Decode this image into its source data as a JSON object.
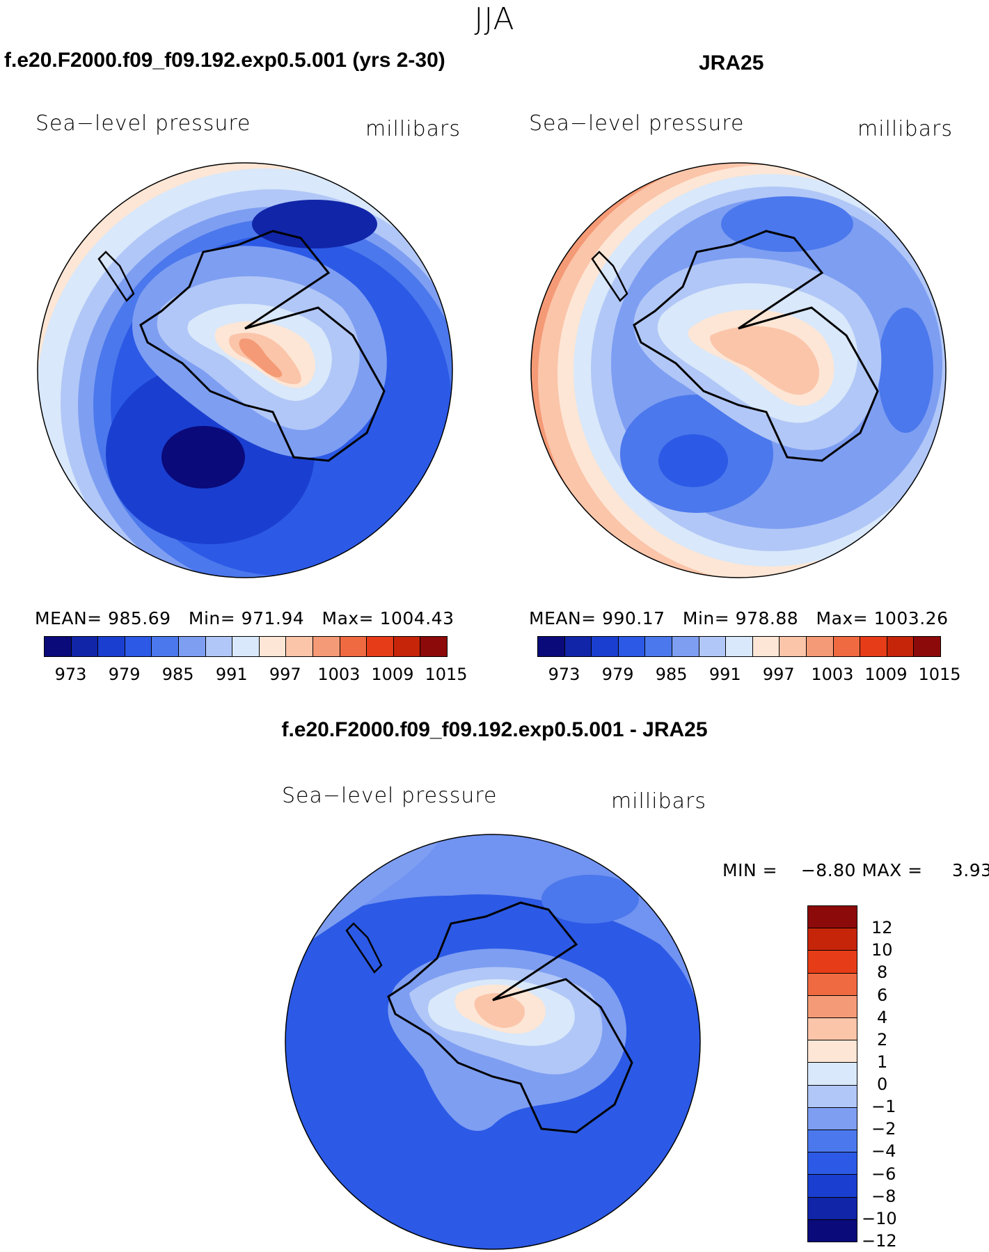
{
  "page_title": "JJA",
  "panels": [
    {
      "title": "f.e20.F2000.f09_f09.192.exp0.5.001 (yrs 2-30)",
      "variable": "Sea−level pressure",
      "units": "millibars",
      "stats": {
        "mean_label": "MEAN=",
        "mean": "985.69",
        "min_label": "Min=",
        "min": "971.94",
        "max_label": "Max=",
        "max": "1004.43"
      }
    },
    {
      "title": "JRA25",
      "variable": "Sea−level pressure",
      "units": "millibars",
      "stats": {
        "mean_label": "MEAN=",
        "mean": "990.17",
        "min_label": "Min=",
        "min": "978.88",
        "max_label": "Max=",
        "max": "1003.26"
      }
    }
  ],
  "difference": {
    "title": "f.e20.F2000.f09_f09.192.exp0.5.001 - JRA25",
    "variable": "Sea−level pressure",
    "units": "millibars",
    "stats": {
      "min_label": "MIN =",
      "min": "−8.80",
      "max_label": "MAX =",
      "max": "3.93"
    }
  },
  "colorbar_abs": {
    "colors": [
      "#0a0a7a",
      "#1125a8",
      "#1a3fd0",
      "#2c5ae6",
      "#4b78ec",
      "#7e9ef2",
      "#b1c7f7",
      "#d9e8fa",
      "#fde6d5",
      "#fbc5aa",
      "#f59a76",
      "#f06a41",
      "#e63d18",
      "#c6250a",
      "#8c0a0a"
    ],
    "tick_labels": [
      "973",
      "979",
      "985",
      "991",
      "997",
      "1003",
      "1009",
      "1015"
    ]
  },
  "colorbar_diff": {
    "colors": [
      "#8c0a0a",
      "#c6250a",
      "#e63d18",
      "#f06a41",
      "#f59a76",
      "#fbc5aa",
      "#fde6d5",
      "#d9e8fa",
      "#b1c7f7",
      "#7e9ef2",
      "#4b78ec",
      "#2c5ae6",
      "#1a3fd0",
      "#1125a8",
      "#0a0a7a"
    ],
    "tick_labels": [
      "12",
      "10",
      "8",
      "6",
      "4",
      "2",
      "1",
      "0",
      "−1",
      "−2",
      "−4",
      "−6",
      "−8",
      "−10",
      "−12"
    ]
  }
}
